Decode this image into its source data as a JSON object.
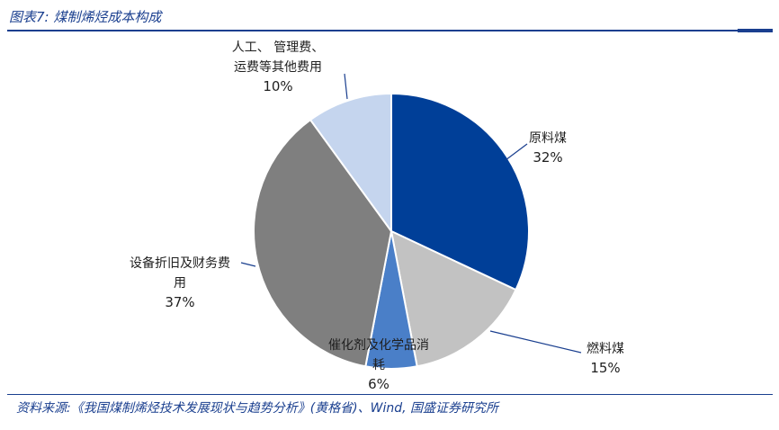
{
  "header": {
    "title": "图表7: 煤制烯烃成本构成"
  },
  "footer": {
    "source": "资料来源:《我国煤制烯烃技术发展现状与趋势分析》(黄格省)、Wind, 国盛证券研究所"
  },
  "chart_data": {
    "type": "pie",
    "title": "",
    "slices": [
      {
        "lines": [
          "原料煤"
        ],
        "pct_label": "32%",
        "value": 32,
        "color": "#003f98"
      },
      {
        "lines": [
          "燃料煤"
        ],
        "pct_label": "15%",
        "value": 15,
        "color": "#c2c2c2"
      },
      {
        "lines": [
          "催化剂及化学品消",
          "耗"
        ],
        "pct_label": "6%",
        "value": 6,
        "color": "#4a7fc8"
      },
      {
        "lines": [
          "设备折旧及财务费",
          "用"
        ],
        "pct_label": "37%",
        "value": 37,
        "color": "#7f7f7f"
      },
      {
        "lines": [
          "人工、 管理费、",
          "运费等其他费用"
        ],
        "pct_label": "10%",
        "value": 10,
        "color": "#c5d5ee"
      }
    ]
  }
}
